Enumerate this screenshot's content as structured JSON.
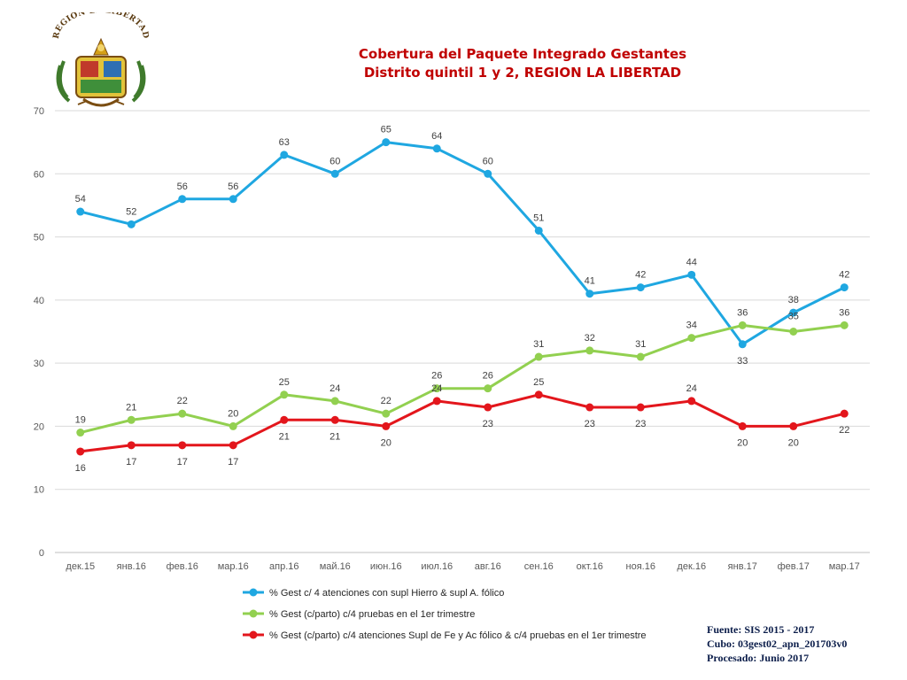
{
  "logo": {
    "text": "REGIÓN LA LIBERTAD"
  },
  "source": {
    "line1": "Fuente: SIS 2015 - 2017",
    "line2": "Cubo: 03gest02_apn_201703v0",
    "line3": "Procesado: Junio 2017"
  },
  "chart_data": {
    "type": "line",
    "title": "Cobertura del Paquete Integrado Gestantes",
    "subtitle": "Distrito quintil 1 y 2, REGION LA LIBERTAD",
    "xlabel": "",
    "ylabel": "",
    "ylim": [
      0,
      70
    ],
    "yticks": [
      0,
      10,
      20,
      30,
      40,
      50,
      60,
      70
    ],
    "grid": true,
    "legend_position": "bottom",
    "categories": [
      "дек.15",
      "янв.16",
      "фев.16",
      "мар.16",
      "апр.16",
      "май.16",
      "июн.16",
      "июл.16",
      "авг.16",
      "сен.16",
      "окт.16",
      "ноя.16",
      "дек.16",
      "янв.17",
      "фев.17",
      "мар.17"
    ],
    "series": [
      {
        "name": "%  Gest c/ 4 atenciones con supl Hierro & supl A. fólico",
        "color": "#1fa7e1",
        "values": [
          54,
          52,
          56,
          56,
          63,
          60,
          65,
          64,
          60,
          51,
          41,
          42,
          44,
          33,
          38,
          42
        ]
      },
      {
        "name": "% Gest (c/parto) c/4 pruebas en el 1er trimestre",
        "color": "#92d050",
        "values": [
          19,
          21,
          22,
          20,
          25,
          24,
          22,
          26,
          26,
          31,
          32,
          31,
          34,
          36,
          35,
          36
        ]
      },
      {
        "name": "% Gest (c/parto) c/4 atenciones Supl de Fe y Ac fólico & c/4 pruebas en el 1er trimestre",
        "color": "#e3161c",
        "values": [
          16,
          17,
          17,
          17,
          21,
          21,
          20,
          24,
          23,
          25,
          23,
          23,
          24,
          20,
          20,
          22
        ]
      }
    ]
  }
}
